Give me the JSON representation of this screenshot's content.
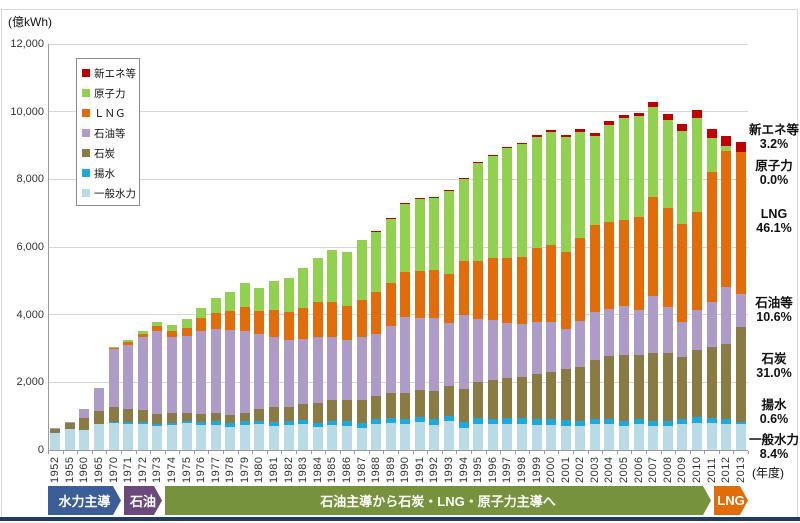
{
  "meta": {
    "unit_label": "(億kWh)",
    "x_axis_suffix": "(年度)"
  },
  "chart_data": {
    "type": "bar",
    "stacked": true,
    "title": "",
    "ylabel": "(億kWh)",
    "xlabel": "(年度)",
    "ylim": [
      0,
      12000
    ],
    "ytick_interval": 2000,
    "ytick_labels": [
      "0",
      "2,000",
      "4,000",
      "6,000",
      "8,000",
      "10,000",
      "12,000"
    ],
    "grid": true,
    "legend_position": "top-left-inside",
    "categories": [
      "1952",
      "1955",
      "1960",
      "1965",
      "1970",
      "1971",
      "1972",
      "1973",
      "1974",
      "1975",
      "1976",
      "1977",
      "1978",
      "1979",
      "1980",
      "1981",
      "1982",
      "1983",
      "1984",
      "1985",
      "1986",
      "1987",
      "1988",
      "1989",
      "1990",
      "1991",
      "1992",
      "1993",
      "1994",
      "1995",
      "1996",
      "1997",
      "1998",
      "1999",
      "2000",
      "2001",
      "2002",
      "2003",
      "2004",
      "2005",
      "2006",
      "2007",
      "2008",
      "2009",
      "2010",
      "2011",
      "2012",
      "2013"
    ],
    "series": [
      {
        "name": "一般水力",
        "color": "#b9dbe7",
        "values": [
          500,
          620,
          580,
          760,
          790,
          770,
          770,
          700,
          730,
          790,
          750,
          750,
          680,
          740,
          760,
          720,
          730,
          760,
          680,
          740,
          720,
          650,
          780,
          800,
          770,
          820,
          750,
          850,
          640,
          780,
          760,
          780,
          770,
          750,
          740,
          720,
          710,
          770,
          770,
          700,
          760,
          720,
          720,
          760,
          810,
          800,
          760,
          765
        ]
      },
      {
        "name": "揚水",
        "color": "#1ea9dc",
        "values": [
          0,
          0,
          0,
          0,
          50,
          60,
          70,
          70,
          80,
          80,
          90,
          100,
          110,
          110,
          110,
          120,
          120,
          120,
          130,
          130,
          130,
          140,
          140,
          150,
          160,
          160,
          160,
          150,
          180,
          170,
          170,
          170,
          170,
          170,
          170,
          160,
          160,
          160,
          160,
          160,
          150,
          150,
          150,
          150,
          160,
          150,
          150,
          55
        ]
      },
      {
        "name": "石炭",
        "color": "#8a7b45",
        "values": [
          140,
          200,
          370,
          380,
          430,
          380,
          350,
          300,
          270,
          230,
          230,
          250,
          230,
          240,
          350,
          420,
          430,
          480,
          570,
          620,
          630,
          680,
          690,
          740,
          760,
          800,
          830,
          880,
          990,
          1060,
          1130,
          1190,
          1230,
          1320,
          1410,
          1510,
          1590,
          1740,
          1840,
          1950,
          1910,
          2010,
          2010,
          1850,
          1980,
          2090,
          2210,
          2820
        ]
      },
      {
        "name": "石油等",
        "color": "#ae9cc8",
        "values": [
          10,
          10,
          270,
          700,
          1720,
          1900,
          2150,
          2450,
          2260,
          2270,
          2460,
          2490,
          2520,
          2440,
          2200,
          2090,
          1980,
          1930,
          1970,
          1860,
          1760,
          1860,
          1820,
          1970,
          2250,
          2130,
          2150,
          1860,
          2180,
          1870,
          1790,
          1620,
          1540,
          1550,
          1460,
          1200,
          1360,
          1410,
          1390,
          1450,
          1330,
          1660,
          1360,
          1030,
          1200,
          1330,
          1700,
          965
        ]
      },
      {
        "name": "ＬＮＧ",
        "color": "#e36c0a",
        "values": [
          0,
          0,
          0,
          0,
          40,
          80,
          100,
          150,
          170,
          230,
          360,
          470,
          570,
          710,
          680,
          790,
          810,
          910,
          1010,
          1010,
          1030,
          1090,
          1230,
          1270,
          1330,
          1390,
          1420,
          1460,
          1590,
          1700,
          1830,
          1910,
          1980,
          2170,
          2290,
          2250,
          2460,
          2580,
          2590,
          2530,
          2740,
          2950,
          2920,
          2880,
          2880,
          3860,
          4010,
          4190
        ]
      },
      {
        "name": "原子力",
        "color": "#92d050",
        "values": [
          0,
          0,
          0,
          0,
          20,
          70,
          80,
          100,
          175,
          270,
          310,
          420,
          570,
          710,
          700,
          860,
          1015,
          1180,
          1320,
          1540,
          1590,
          1790,
          1810,
          1920,
          2020,
          2130,
          2155,
          2470,
          2440,
          2920,
          3020,
          3260,
          3345,
          3300,
          3340,
          3410,
          3130,
          2625,
          2870,
          3015,
          2975,
          2640,
          2585,
          2760,
          2770,
          1000,
          160,
          0
        ]
      },
      {
        "name": "新エネ等",
        "color": "#c00000",
        "values": [
          0,
          0,
          0,
          0,
          0,
          0,
          0,
          0,
          0,
          0,
          0,
          0,
          0,
          0,
          0,
          0,
          0,
          0,
          0,
          0,
          0,
          0,
          10,
          10,
          15,
          20,
          20,
          20,
          20,
          20,
          20,
          30,
          40,
          50,
          50,
          60,
          70,
          80,
          90,
          100,
          110,
          170,
          190,
          210,
          250,
          250,
          290,
          295
        ]
      }
    ],
    "legend": [
      {
        "label": "新エネ等",
        "color": "#c00000"
      },
      {
        "label": "原子力",
        "color": "#92d050"
      },
      {
        "label": "ＬＮＧ",
        "color": "#e36c0a"
      },
      {
        "label": "石油等",
        "color": "#ae9cc8"
      },
      {
        "label": "石炭",
        "color": "#8a7b45"
      },
      {
        "label": "揚水",
        "color": "#1ea9dc"
      },
      {
        "label": "一般水力",
        "color": "#b9dbe7"
      }
    ],
    "right_labels": [
      {
        "label": "新エネ等",
        "value": "3.2%"
      },
      {
        "label": "原子力",
        "value": "0.0%"
      },
      {
        "label": "LNG",
        "value": "46.1%"
      },
      {
        "label": "石油等",
        "value": "10.6%"
      },
      {
        "label": "石炭",
        "value": "31.0%"
      },
      {
        "label": "揚水",
        "value": "0.6%"
      },
      {
        "label": "一般水力",
        "value": "8.4%"
      }
    ],
    "timeline_bands": [
      {
        "label": "水力主導",
        "color": "#3c5e98"
      },
      {
        "label": "石油",
        "color": "#6a4a7d"
      },
      {
        "label": "石油主導から石炭・LNG・原子力主導へ",
        "color": "#76923c"
      },
      {
        "label": "LNG",
        "color": "#e36c0a"
      }
    ]
  }
}
